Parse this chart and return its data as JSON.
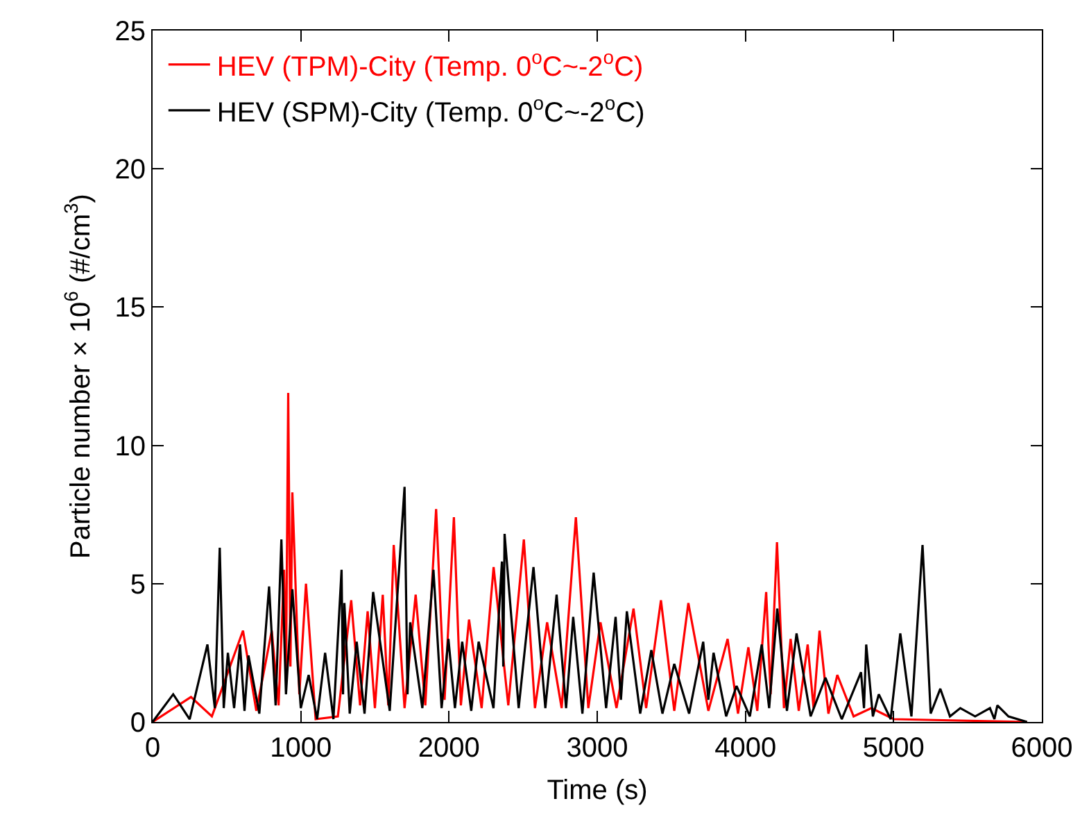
{
  "chart_data": {
    "type": "line",
    "xlabel": "Time (s)",
    "ylabel": "Particle number × 10$^{6}$ (#/cm$^{3}$)",
    "xlim": [
      0,
      6000
    ],
    "ylim": [
      0,
      25
    ],
    "xticks": [
      0,
      1000,
      2000,
      3000,
      4000,
      5000,
      6000
    ],
    "yticks": [
      0,
      5,
      10,
      15,
      20,
      25
    ],
    "grid": false,
    "legend": "top left",
    "marker": "none",
    "line_style": "solid",
    "series": [
      {
        "name": "HEV (TPM)-City (Temp. 0$^{o}$C~-2$^{o}$C)",
        "color": "#ff0000",
        "x": [
          0,
          259,
          400,
          610,
          700,
          804,
          850,
          887,
          900,
          915,
          930,
          943,
          990,
          1035,
          1100,
          1250,
          1340,
          1400,
          1451,
          1500,
          1553,
          1590,
          1627,
          1700,
          1775,
          1840,
          1913,
          1970,
          2033,
          2080,
          2135,
          2220,
          2301,
          2400,
          2505,
          2580,
          2662,
          2760,
          2856,
          2940,
          3022,
          3130,
          3245,
          3330,
          3430,
          3520,
          3615,
          3750,
          3880,
          3950,
          4020,
          4080,
          4140,
          4170,
          4213,
          4260,
          4305,
          4360,
          4420,
          4460,
          4500,
          4560,
          4620,
          4730,
          4850,
          5000,
          5900
        ],
        "values": [
          0,
          0.9,
          0.2,
          3.3,
          0.4,
          3.3,
          0.6,
          5.5,
          1.5,
          11.9,
          2,
          8.3,
          1,
          5.0,
          0.1,
          0.2,
          4.4,
          0.6,
          4.0,
          0.5,
          4.6,
          0.6,
          6.4,
          0.5,
          4.6,
          0.6,
          7.7,
          0.8,
          7.4,
          0.6,
          3.7,
          0.5,
          5.6,
          0.6,
          6.6,
          0.5,
          3.6,
          0.5,
          7.4,
          0.5,
          3.6,
          0.5,
          4.1,
          0.5,
          4.4,
          0.4,
          4.3,
          0.4,
          3.0,
          0.3,
          2.7,
          0.4,
          4.7,
          1,
          6.5,
          0.5,
          3.0,
          0.4,
          2.8,
          0.5,
          3.3,
          0.3,
          1.7,
          0.2,
          0.5,
          0.1,
          0
        ]
      },
      {
        "name": "HEV (SPM)-City (Temp. 0$^{o}$C~-2$^{o}$C)",
        "color": "#000000",
        "x": [
          0,
          139,
          250,
          370,
          420,
          453,
          480,
          508,
          550,
          590,
          620,
          647,
          720,
          786,
          830,
          869,
          900,
          943,
          1000,
          1053,
          1110,
          1164,
          1220,
          1275,
          1285,
          1294,
          1330,
          1377,
          1430,
          1488,
          1600,
          1700,
          1720,
          1738,
          1820,
          1895,
          1950,
          1996,
          2040,
          2089,
          2150,
          2200,
          2300,
          2357,
          2366,
          2375,
          2470,
          2570,
          2650,
          2726,
          2790,
          2838,
          2900,
          2976,
          3060,
          3124,
          3160,
          3200,
          3290,
          3365,
          3440,
          3520,
          3620,
          3715,
          3750,
          3785,
          3870,
          3940,
          4030,
          4110,
          4160,
          4215,
          4280,
          4345,
          4440,
          4540,
          4650,
          4780,
          4800,
          4815,
          4860,
          4900,
          4980,
          5045,
          5120,
          5195,
          5250,
          5315,
          5380,
          5450,
          5550,
          5650,
          5680,
          5700,
          5775,
          5900
        ],
        "values": [
          0,
          1.0,
          0.1,
          2.8,
          0.5,
          6.3,
          0.5,
          2.5,
          0.5,
          2.8,
          0.4,
          2.4,
          0.3,
          4.9,
          0.6,
          6.6,
          1.0,
          4.8,
          0.5,
          1.7,
          0.1,
          2.5,
          0.1,
          5.5,
          1,
          4.3,
          0.3,
          2.9,
          0.3,
          4.7,
          0.4,
          8.5,
          1,
          3.6,
          0.5,
          5.5,
          0.5,
          3.0,
          0.5,
          2.9,
          0.4,
          2.9,
          0.5,
          5.8,
          2,
          6.8,
          0.5,
          5.6,
          0.5,
          4.6,
          0.5,
          3.8,
          0.3,
          5.4,
          0.5,
          3.8,
          0.8,
          4.0,
          0.3,
          2.6,
          0.3,
          2.1,
          0.3,
          2.9,
          0.8,
          2.5,
          0.2,
          1.3,
          0.2,
          2.8,
          0.5,
          4.1,
          0.4,
          3.2,
          0.2,
          1.6,
          0.1,
          1.8,
          0.5,
          2.8,
          0.2,
          1.0,
          0.1,
          3.2,
          0.2,
          6.4,
          0.3,
          1.2,
          0.2,
          0.5,
          0.2,
          0.5,
          0.1,
          0.6,
          0.2,
          0
        ]
      }
    ]
  }
}
